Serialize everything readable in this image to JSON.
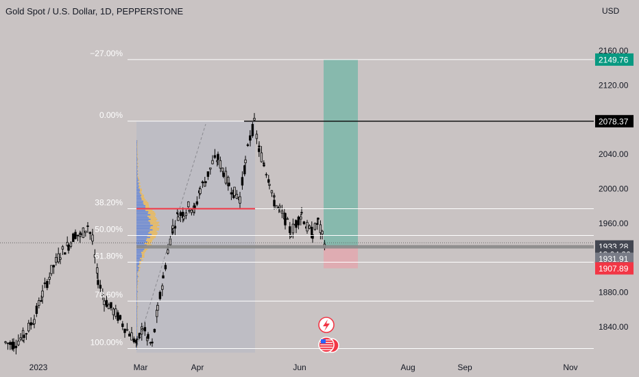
{
  "header": {
    "title": "Gold Spot / U.S. Dollar, 1D, PEPPERSTONE",
    "unit": "USD"
  },
  "chart_data": {
    "type": "candlestick",
    "y_axis": {
      "ticks": [
        "2160.00",
        "2120.00",
        "2040.00",
        "2000.00",
        "1960.00",
        "1880.00",
        "1840.00"
      ],
      "tick_values": [
        2160,
        2120,
        2040,
        2000,
        1960,
        1880,
        1840
      ],
      "range": [
        1810,
        2185
      ]
    },
    "x_axis": {
      "labels": [
        "2023",
        "Mar",
        "Apr",
        "Jun",
        "Aug",
        "Sep",
        "Nov"
      ]
    },
    "price_badges": [
      {
        "label": "2149.76",
        "value": 2149.76,
        "color": "#089981"
      },
      {
        "label": "2078.37",
        "value": 2078.37,
        "color": "#000000"
      },
      {
        "label": "1933.28",
        "value": 1933.28,
        "color": "#434651"
      },
      {
        "label": "13:04:26",
        "value": 1924,
        "color": "#434651"
      },
      {
        "label": "1931.91",
        "value": 1919,
        "color": "#787b86"
      },
      {
        "label": "1907.89",
        "value": 1907.89,
        "color": "#f23645"
      }
    ],
    "fibonacci": [
      {
        "label": "−27.00%",
        "value": 2149.76
      },
      {
        "label": "0.00%",
        "value": 2078.37
      },
      {
        "label": "38.20%",
        "value": 1977
      },
      {
        "label": "50.00%",
        "value": 1946
      },
      {
        "label": "61.80%",
        "value": 1915
      },
      {
        "label": "78.60%",
        "value": 1870
      },
      {
        "label": "100.00%",
        "value": 1815
      }
    ],
    "position": {
      "entry": 1933.28,
      "target": 2149.76,
      "stop": 1907.89,
      "profit_color": "#7fb8ab",
      "loss_color": "#e1aab0"
    },
    "colors": {
      "up": "#000000",
      "down": "#000000",
      "poc_line": "#f23645",
      "profile_up": "#f5b942",
      "profile_down": "#5b7ed6",
      "range_box": "#bcbcc4"
    },
    "event_icons": [
      "lightning-event-icon",
      "us-flag-event-icon"
    ]
  }
}
